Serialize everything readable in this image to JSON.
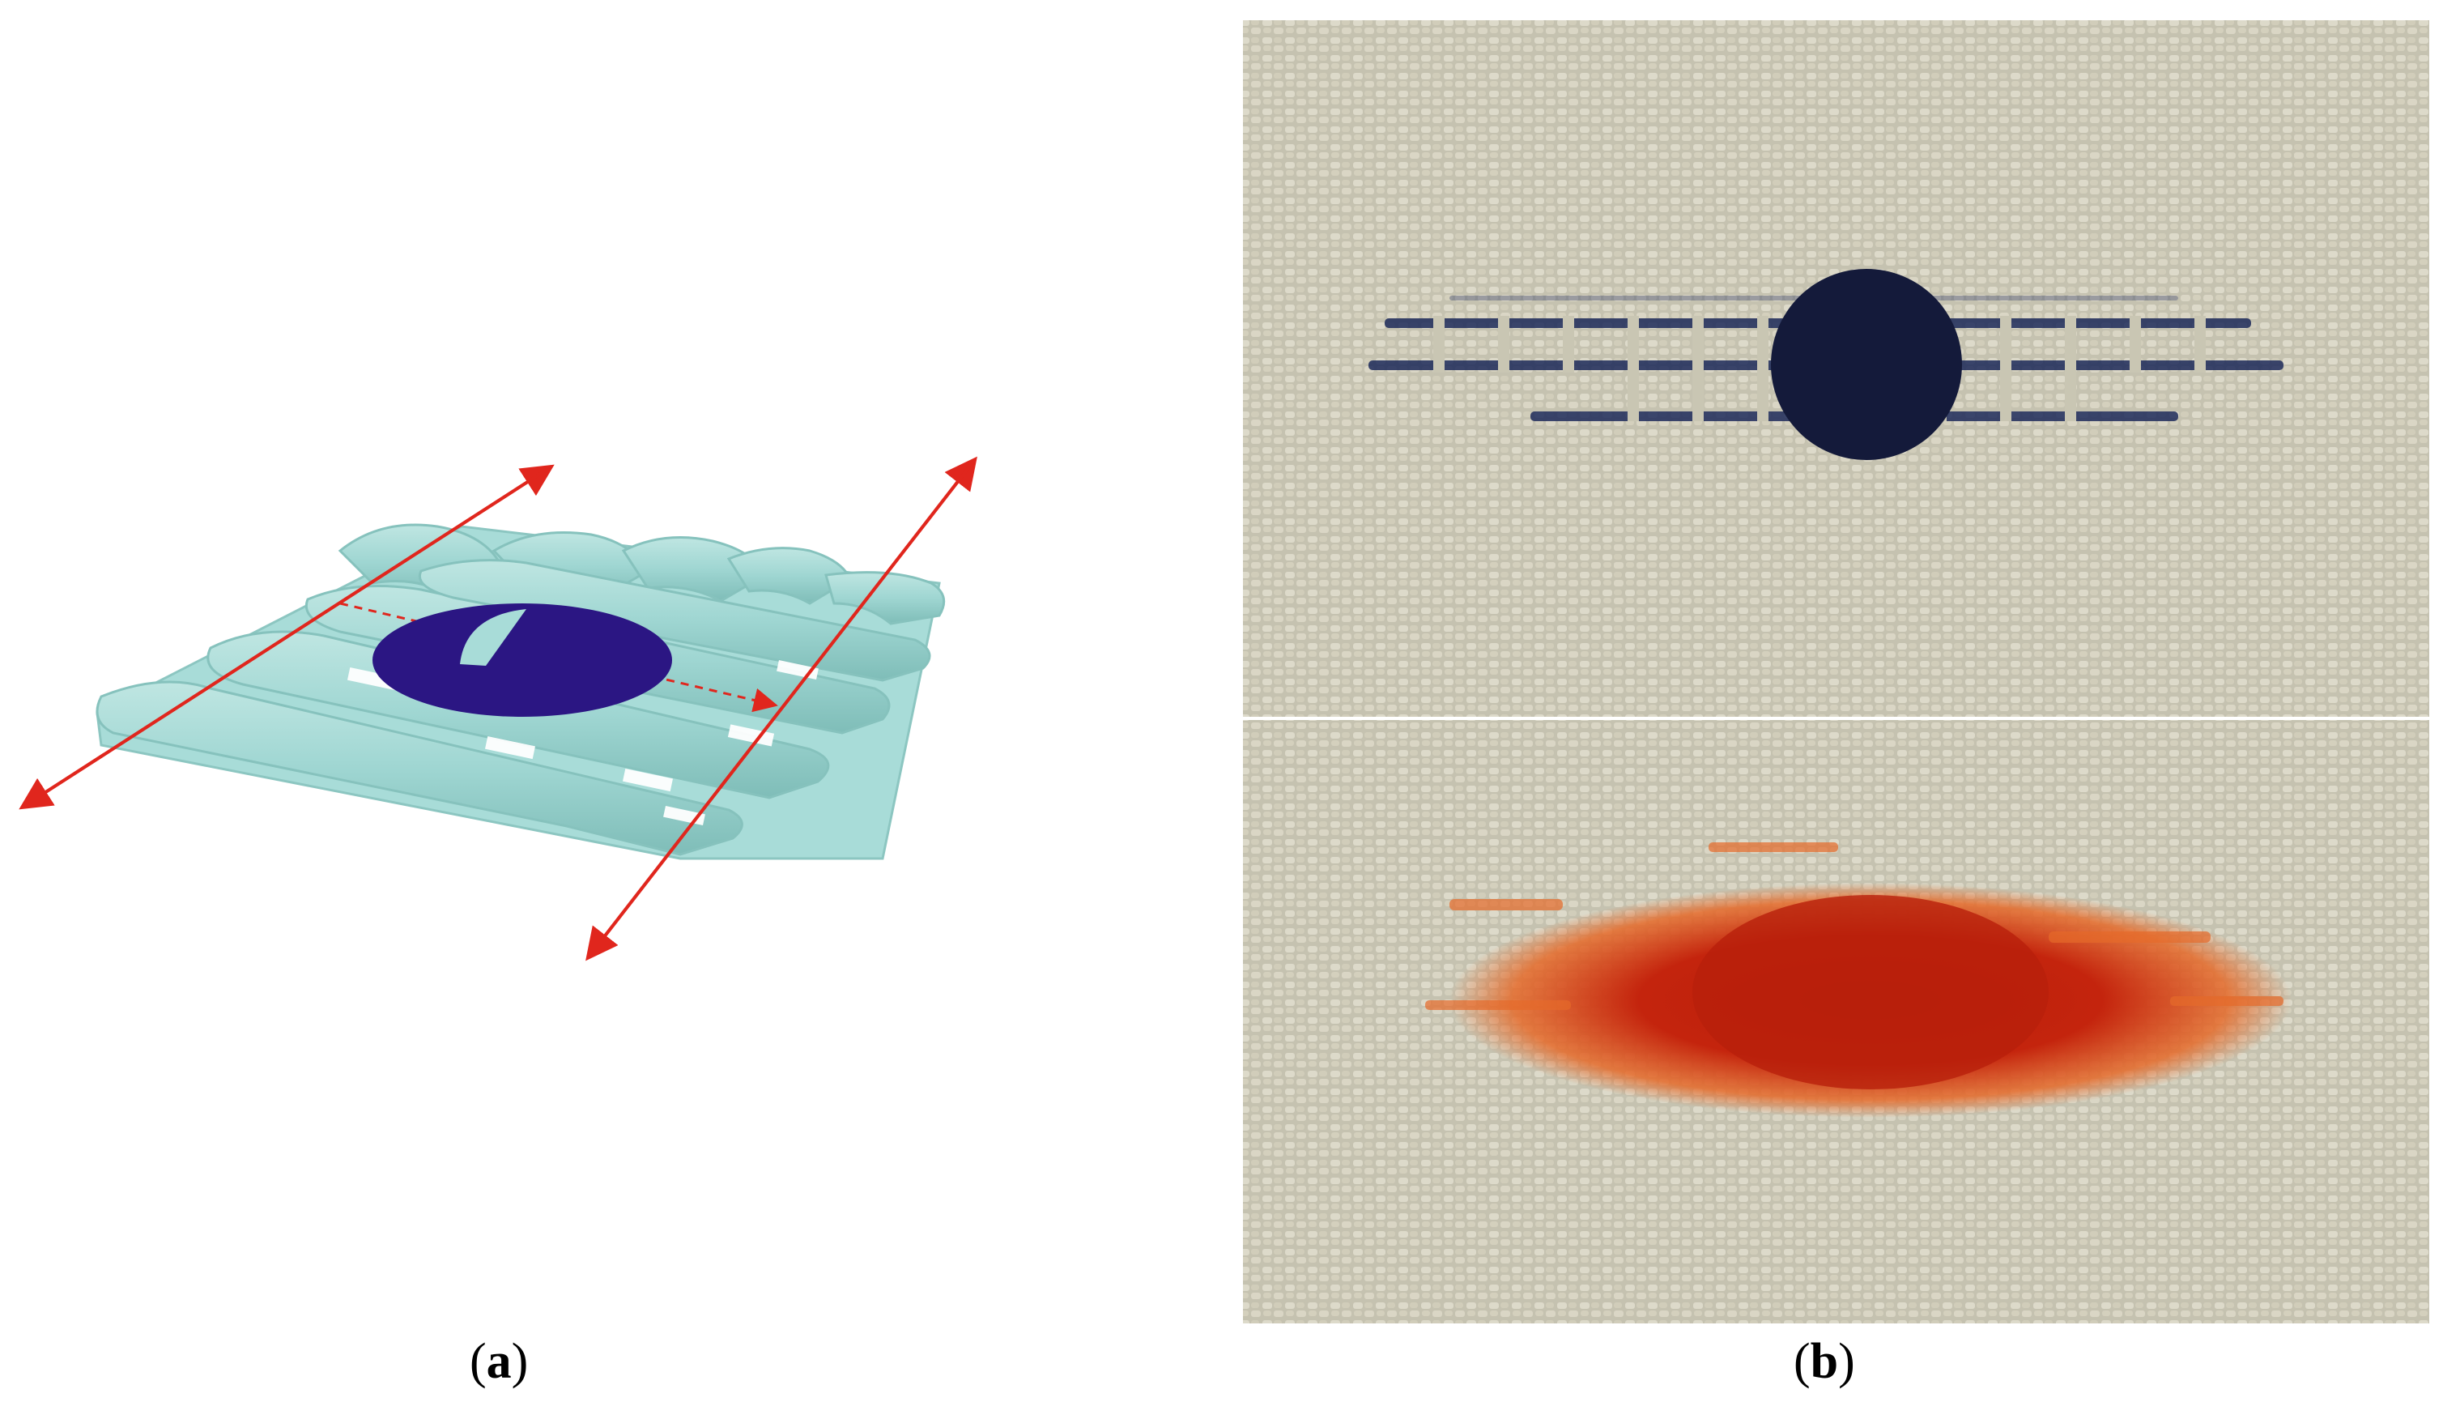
{
  "figure": {
    "panel_a": {
      "caption_open": "(",
      "caption_letter": "a",
      "caption_close": ")",
      "colors": {
        "fabric": "#9fd6d2",
        "fabric_shadow": "#7fbdb8",
        "drop": "#2b1683",
        "arrow": "#e0261d"
      }
    },
    "panel_b": {
      "caption_open": "(",
      "caption_letter": "b",
      "caption_close": ")",
      "colors": {
        "cloth": "#cbc8b6",
        "thread": "#e9e6d6",
        "stain_top": "#141a3a",
        "stain_bottom": "#c4240d",
        "stain_bottom_edge": "#e56a2a"
      }
    }
  }
}
